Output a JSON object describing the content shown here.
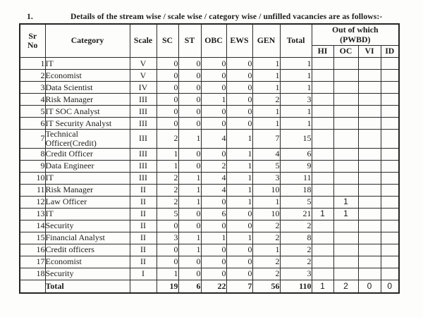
{
  "page": {
    "title_number": "1.",
    "title_text": "Details of the stream wise / scale wise / category wise / unfilled vacancies are as follows:-"
  },
  "table": {
    "headers": {
      "sr": "Sr\nNo",
      "category": "Category",
      "scale": "Scale",
      "sc": "SC",
      "st": "ST",
      "obc": "OBC",
      "ews": "EWS",
      "gen": "GEN",
      "total": "Total",
      "pwbd_group": "Out of which\n(PWBD)",
      "hi": "HI",
      "oc": "OC",
      "vi": "VI",
      "id": "ID"
    },
    "rows": [
      {
        "sr": "1",
        "category": "IT",
        "scale": "V",
        "sc": "0",
        "st": "0",
        "obc": "0",
        "ews": "0",
        "gen": "1",
        "total": "1",
        "hi": "",
        "oc": "",
        "vi": "",
        "id": ""
      },
      {
        "sr": "2",
        "category": "Economist",
        "scale": "V",
        "sc": "0",
        "st": "0",
        "obc": "0",
        "ews": "0",
        "gen": "1",
        "total": "1",
        "hi": "",
        "oc": "",
        "vi": "",
        "id": ""
      },
      {
        "sr": "3",
        "category": "Data Scientist",
        "scale": "IV",
        "sc": "0",
        "st": "0",
        "obc": "0",
        "ews": "0",
        "gen": "1",
        "total": "1",
        "hi": "",
        "oc": "",
        "vi": "",
        "id": ""
      },
      {
        "sr": "4",
        "category": "Risk Manager",
        "scale": "III",
        "sc": "0",
        "st": "0",
        "obc": "1",
        "ews": "0",
        "gen": "2",
        "total": "3",
        "hi": "",
        "oc": "",
        "vi": "",
        "id": ""
      },
      {
        "sr": "5",
        "category": "IT SOC Analyst",
        "scale": "III",
        "sc": "0",
        "st": "0",
        "obc": "0",
        "ews": "0",
        "gen": "1",
        "total": "1",
        "hi": "",
        "oc": "",
        "vi": "",
        "id": ""
      },
      {
        "sr": "6",
        "category": "IT Security Analyst",
        "scale": "III",
        "sc": "0",
        "st": "0",
        "obc": "0",
        "ews": "0",
        "gen": "1",
        "total": "1",
        "hi": "",
        "oc": "",
        "vi": "",
        "id": ""
      },
      {
        "sr": "7",
        "category": "Technical Officer(Credit)",
        "scale": "III",
        "sc": "2",
        "st": "1",
        "obc": "4",
        "ews": "1",
        "gen": "7",
        "total": "15",
        "hi": "",
        "oc": "",
        "vi": "",
        "id": ""
      },
      {
        "sr": "8",
        "category": "Credit Officer",
        "scale": "III",
        "sc": "1",
        "st": "0",
        "obc": "0",
        "ews": "1",
        "gen": "4",
        "total": "6",
        "hi": "",
        "oc": "",
        "vi": "",
        "id": ""
      },
      {
        "sr": "9",
        "category": "Data Engineer",
        "scale": "III",
        "sc": "1",
        "st": "0",
        "obc": "2",
        "ews": "1",
        "gen": "5",
        "total": "9",
        "hi": "",
        "oc": "",
        "vi": "",
        "id": ""
      },
      {
        "sr": "10",
        "category": "IT",
        "scale": "III",
        "sc": "2",
        "st": "1",
        "obc": "4",
        "ews": "1",
        "gen": "3",
        "total": "11",
        "hi": "",
        "oc": "",
        "vi": "",
        "id": ""
      },
      {
        "sr": "11",
        "category": "Risk Manager",
        "scale": "II",
        "sc": "2",
        "st": "1",
        "obc": "4",
        "ews": "1",
        "gen": "10",
        "total": "18",
        "hi": "",
        "oc": "",
        "vi": "",
        "id": ""
      },
      {
        "sr": "12",
        "category": "Law Officer",
        "scale": "II",
        "sc": "2",
        "st": "1",
        "obc": "0",
        "ews": "1",
        "gen": "1",
        "total": "5",
        "hi": "",
        "oc": "1",
        "vi": "",
        "id": ""
      },
      {
        "sr": "13",
        "category": "IT",
        "scale": "II",
        "sc": "5",
        "st": "0",
        "obc": "6",
        "ews": "0",
        "gen": "10",
        "total": "21",
        "hi": "1",
        "oc": "1",
        "vi": "",
        "id": ""
      },
      {
        "sr": "14",
        "category": "Security",
        "scale": "II",
        "sc": "0",
        "st": "0",
        "obc": "0",
        "ews": "0",
        "gen": "2",
        "total": "2",
        "hi": "",
        "oc": "",
        "vi": "",
        "id": ""
      },
      {
        "sr": "15",
        "category": "Financial Analyst",
        "scale": "II",
        "sc": "3",
        "st": "1",
        "obc": "1",
        "ews": "1",
        "gen": "2",
        "total": "8",
        "hi": "",
        "oc": "",
        "vi": "",
        "id": ""
      },
      {
        "sr": "16",
        "category": "Credit officers",
        "scale": "II",
        "sc": "0",
        "st": "1",
        "obc": "0",
        "ews": "0",
        "gen": "1",
        "total": "2",
        "hi": "",
        "oc": "",
        "vi": "",
        "id": ""
      },
      {
        "sr": "17",
        "category": "Economist",
        "scale": "II",
        "sc": "0",
        "st": "0",
        "obc": "0",
        "ews": "0",
        "gen": "2",
        "total": "2",
        "hi": "",
        "oc": "",
        "vi": "",
        "id": ""
      },
      {
        "sr": "18",
        "category": "Security",
        "scale": "I",
        "sc": "1",
        "st": "0",
        "obc": "0",
        "ews": "0",
        "gen": "2",
        "total": "3",
        "hi": "",
        "oc": "",
        "vi": "",
        "id": ""
      }
    ],
    "total_row": {
      "sr": "",
      "category": "Total",
      "scale": "",
      "sc": "19",
      "st": "6",
      "obc": "22",
      "ews": "7",
      "gen": "56",
      "total": "110",
      "hi": "1",
      "oc": "2",
      "vi": "0",
      "id": "0"
    }
  }
}
